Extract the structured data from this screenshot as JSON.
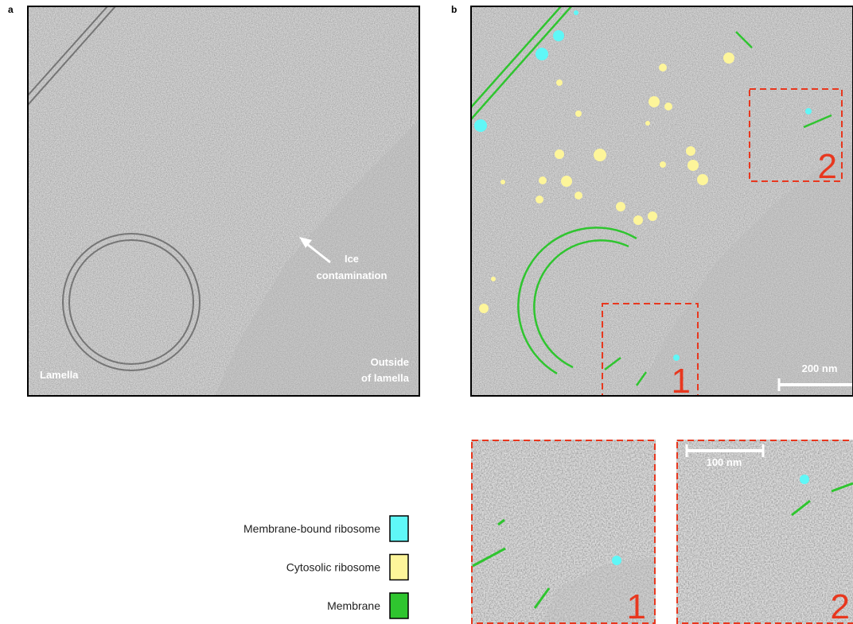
{
  "panel_a": {
    "label": "a",
    "arrow_label": [
      "Ice",
      "contamination"
    ],
    "region_left": "Lamella",
    "region_right": [
      "Outside",
      "of lamella"
    ]
  },
  "panel_b": {
    "label": "b",
    "scale_bar": "200 nm",
    "boxes": [
      "1",
      "2"
    ]
  },
  "insets": {
    "scale_bar": "100 nm",
    "labels": [
      "1",
      "2"
    ]
  },
  "legend": [
    {
      "label": "Membrane-bound ribosome",
      "color": "#5ff7f7"
    },
    {
      "label": "Cytosolic ribosome",
      "color": "#fdf59a"
    },
    {
      "label": "Membrane",
      "color": "#2fc52f"
    }
  ]
}
